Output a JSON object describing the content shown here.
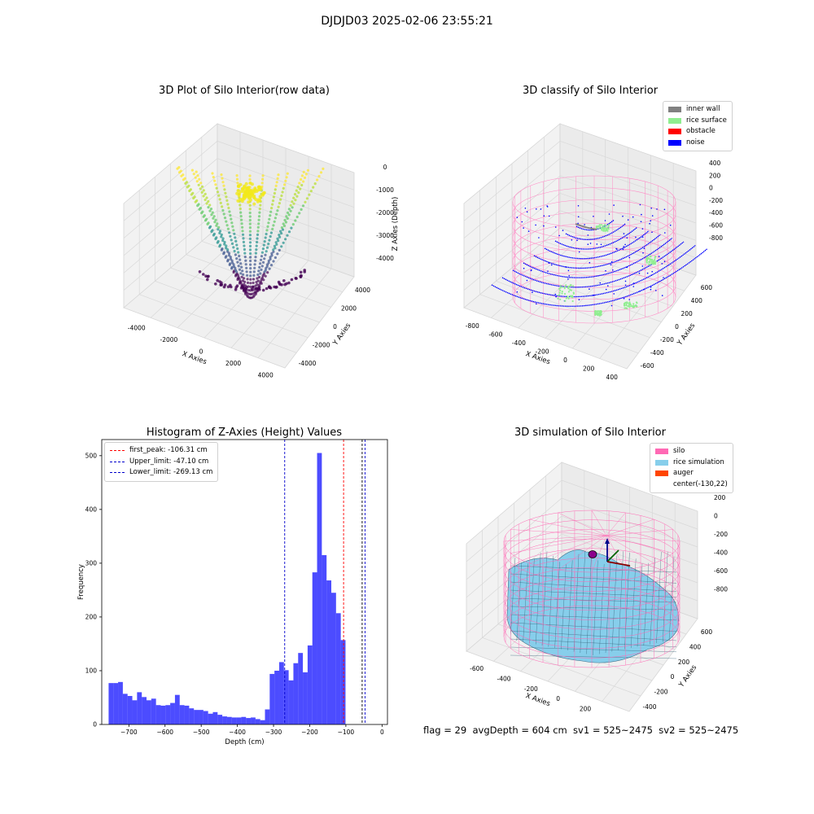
{
  "suptitle": "DJDJD03 2025-02-06 23:55:21",
  "panels": {
    "raw": {
      "title": "3D Plot of Silo Interior(row data)",
      "xlabel": "X Axies",
      "ylabel": "Y Axies",
      "zlabel": "Z Axies (Depth)",
      "xticks": [
        "-4000",
        "-2000",
        "0",
        "2000",
        "4000"
      ],
      "yticks": [
        "-4000",
        "-2000",
        "0",
        "2000",
        "4000"
      ],
      "zticks": [
        "0",
        "-1000",
        "-2000",
        "-3000",
        "-4000"
      ]
    },
    "classify": {
      "title": "3D classify of Silo Interior",
      "xlabel": "X Axies",
      "ylabel": "Y Axies",
      "zlabel": "Z Axies (Depth)",
      "xticks": [
        "-800",
        "-600",
        "-400",
        "-200",
        "0",
        "200",
        "400"
      ],
      "yticks": [
        "-600",
        "-400",
        "-200",
        "0",
        "200",
        "400",
        "600"
      ],
      "zticks": [
        "400",
        "200",
        "0",
        "-200",
        "-400",
        "-600",
        "-800"
      ],
      "legend": [
        {
          "label": "inner wall",
          "color": "#808080"
        },
        {
          "label": "rice surface",
          "color": "#90ee90"
        },
        {
          "label": "obstacle",
          "color": "#ff0000"
        },
        {
          "label": "noise",
          "color": "#0000ff"
        }
      ]
    },
    "simulation": {
      "title": "3D simulation of Silo Interior",
      "xlabel": "X Axies",
      "ylabel": "Y Axies",
      "zlabel": "Z Axies (Depth)",
      "xticks": [
        "-600",
        "-400",
        "-200",
        "0",
        "200",
        "400"
      ],
      "yticks": [
        "-400",
        "-200",
        "0",
        "200",
        "400",
        "600"
      ],
      "zticks": [
        "200",
        "0",
        "-200",
        "-400",
        "-600",
        "-800"
      ],
      "legend": [
        {
          "label": "silo",
          "color": "#ff69b4"
        },
        {
          "label": "rice simulation",
          "color": "#87ceeb"
        },
        {
          "label": "auger",
          "color": "#ff4500"
        },
        {
          "label": "center(-130,22)",
          "color": ""
        }
      ]
    }
  },
  "footer": "flag = 29  avgDepth = 604 cm  sv1 = 525~2475  sv2 = 525~2475",
  "chart_data": {
    "type": "bar",
    "title": "Histogram of Z-Axies (Height) Values",
    "xlabel": "Depth (cm)",
    "ylabel": "Frequency",
    "xlim": [
      -775,
      15
    ],
    "ylim": [
      0,
      530
    ],
    "xticks": [
      -700,
      -600,
      -500,
      -400,
      -300,
      -200,
      -100,
      0
    ],
    "yticks": [
      0,
      100,
      200,
      300,
      400,
      500
    ],
    "bin_width": 13.1,
    "bin_start": -756,
    "values": [
      77,
      77,
      79,
      57,
      53,
      45,
      60,
      51,
      45,
      48,
      36,
      35,
      36,
      40,
      55,
      36,
      35,
      30,
      27,
      27,
      25,
      20,
      23,
      18,
      15,
      14,
      13,
      13,
      14,
      12,
      13,
      10,
      8,
      28,
      94,
      100,
      116,
      101,
      82,
      114,
      133,
      97,
      147,
      283,
      505,
      315,
      268,
      245,
      207,
      157
    ],
    "bar_color": "#0000ff",
    "lines": [
      {
        "label": "first_peak: -106.31 cm",
        "value": -106.31,
        "color": "#ff0000"
      },
      {
        "label": "Upper_limit: -47.10 cm",
        "value": -47.1,
        "color": "#0000cc"
      },
      {
        "label": "Lower_limit: -269.13 cm",
        "value": -269.13,
        "color": "#0000cc"
      }
    ],
    "extra_line": {
      "value": -55,
      "color": "#000000"
    }
  }
}
